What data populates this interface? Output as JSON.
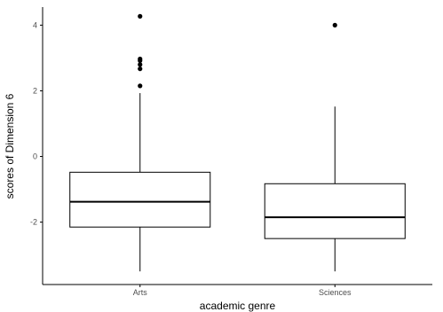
{
  "chart_data": {
    "type": "boxplot",
    "title": "",
    "xlabel": "academic genre",
    "ylabel": "scores of Dimension 6",
    "categories": [
      "Arts",
      "Sciences"
    ],
    "ylim": [
      -3.9,
      4.55
    ],
    "yticks": [
      {
        "value": -2,
        "label": "-2"
      },
      {
        "value": 0,
        "label": "0"
      },
      {
        "value": 2,
        "label": "2"
      },
      {
        "value": 4,
        "label": "4"
      }
    ],
    "boxes": [
      {
        "category": "Arts",
        "whisker_low": -3.5,
        "q1": -2.15,
        "median": -1.38,
        "q3": -0.48,
        "whisker_high": 1.93,
        "outliers": [
          2.15,
          2.67,
          2.8,
          2.92,
          2.97,
          4.27
        ]
      },
      {
        "category": "Sciences",
        "whisker_low": -3.5,
        "q1": -2.5,
        "median": -1.85,
        "q3": -0.83,
        "whisker_high": 1.52,
        "outliers": [
          4.0
        ]
      }
    ],
    "grid": false,
    "legend": "none",
    "colors": {
      "box_fill": "#ffffff",
      "line": "#000000",
      "axis": "#000000",
      "tick_text": "#4d4d4d"
    }
  }
}
